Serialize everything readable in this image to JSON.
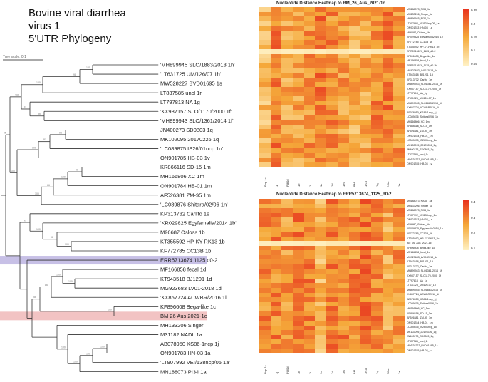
{
  "title": {
    "line1": "Bovine viral diarrhea",
    "line2": "virus 1",
    "line3": "5'UTR Phylogeny"
  },
  "tree": {
    "scale_label": "Tree scale: 0.1",
    "leaves": [
      "'MH899945 SLO/1883/2013 1h'",
      "'LT631725 UM/126/07 1h'",
      "MW528227 BVD01695 1s",
      "LT837585 uncl 1r",
      "LT797813 NA 1g",
      "'KX987157 SLO/1170/2000 1f'",
      "'MH899943 SLO/1361/2014 1f'",
      "JN400273 SD0803 1q",
      "MK102095 20170226 1q",
      "'LC089875 IS26/01ncp 1o'",
      "ON901785 HB-03 1v",
      "KR866116 SD-15 1m",
      "MH166806 XC 1m",
      "ON901784 HB-01 1m",
      "AF526381 ZM-95 1m",
      "'LC089876 Shitara/02/06 1n'",
      "KP313732 Carlito 1e",
      "'KR029825 Egyfamalia/2014 1b'",
      "M96687 Osloss 1b",
      "KT355592 HP-KY-RK13 1b",
      "KF772785 CC13B 1b",
      "ERR5713674 1125 d0-2",
      "MF166858 fecal 1d",
      "KT943518 BJ1201 1d",
      "MG923683 LV01-2018 1d",
      "'KX857724 ACWBR/2016 1i'",
      "KF896608 Bega-like 1c",
      "BM 26 Aus 2021-1c",
      "MH133206 Singer",
      "M31182 NADL 1a",
      "AB078950 KS86-1ncp 1j",
      "ON901783 HN-03 1a",
      "'LT907992 VEI/138ncp/05 1a'",
      "MN188073 PI34 1a"
    ],
    "bootstrap": [
      "100",
      "98",
      "100",
      "86",
      "87",
      "95",
      "81",
      "100",
      "99",
      "100",
      "66",
      "100",
      "100",
      "100",
      "95",
      "100",
      "98",
      "100",
      "97",
      "100",
      "100",
      "86",
      "100",
      "56",
      "100",
      "100",
      "100",
      "100"
    ],
    "highlight_colors": {
      "ERR": "#c7c0e6",
      "BM": "#f2c3c3"
    }
  },
  "heatmap_top": {
    "title": "Nucleotide Distance Heatmap to BM_26_Aus_2021-1c",
    "rows": [
      "MN188073_PI34_1a",
      "MH133206_Singer_1a",
      "MH899945_PI34_1a",
      "LT907992_VEI138ncp05_1a",
      "ON901783_HN-03_1a",
      "M96687_Osloss_1b",
      "KR029825_Egyfamalia2014_1b",
      "KF772785_CC13B_1b",
      "KT355592_HP-KY-RK13_1b",
      "ERR5713674_1125_d0-2",
      "KF896608_Bega-like_1c",
      "MF166858_fecal_1d",
      "ERR5713674_1125_d0-2b",
      "MG923683_LV01-2018_1d",
      "KT943518_BJ1201_1d",
      "KP313732_Carlito_1e",
      "MH899943_SLO1361-2014_1f",
      "KX987157_SLO1170-2000_1f",
      "LT797813_NA_1g",
      "LT631725_UM126-07_1h",
      "MH899945_SLO1883-2013_1h",
      "KX857724_ACWBR2016_1i",
      "AB078950_KS86-1ncp_1j",
      "LC089876_Shitara0206_1n",
      "MH166806_XC_1m",
      "KR866116_SD-15_1m",
      "AF526381_ZM-95_1m",
      "ON901784_HB-01_1m",
      "LC089875_IS2601ncp_1o",
      "MK102095_20170226_1q",
      "JN400273_SD0803_1q",
      "LT837585_uncl_1r",
      "MW528227_BVD01695_1s",
      "ON901785_HB-03_1v"
    ],
    "cols": [
      "Pop-1c",
      "1j",
      "PI80d",
      "1b",
      "1i",
      "1c",
      "1d",
      "1m",
      "BM",
      "1n-0",
      "1q",
      "N1a",
      "1a"
    ],
    "legend": [
      "0.25",
      "0.2",
      "0.15",
      "0.1",
      "0.05"
    ]
  },
  "heatmap_bottom": {
    "title": "Nucleotide Distance Heatmap to ERR5713674_1125_d0-2",
    "rows": [
      "MN188073_NADL_1a",
      "MH133206_Singer_1a",
      "MN188073_PI34_1a",
      "LT907992_VEI138ncp_1a",
      "ON901783_HN-03_1a",
      "M96687_Osloss_1b",
      "KR029825_Egyfamalia2014_1b",
      "KF772785_CC13B_1b",
      "KT355592_HP-KY-RK13_1b",
      "BM_26_Aus_2021-1c",
      "KF896608_Bega-like_1c",
      "MF166858_fecal_1d",
      "MG923683_LV01-2018_1d",
      "KT943518_BJ1201_1d",
      "KP313732_Carlito_1e",
      "MH899943_SLO1361-2014_1f",
      "KX987157_SLO1170-2000_1f",
      "LT797813_NA_1g",
      "LT631725_UM126-07_1h",
      "MH899945_SLO1883-2013_1h",
      "KX857724_ACWBR2016_1i",
      "AB078950_KS86-1ncp_1j",
      "LC089876_Shitara0206_1n",
      "MH166806_XC_1m",
      "KR866116_SD-15_1m",
      "AF526381_ZM-95_1m",
      "ON901784_HB-01_1m",
      "LC089875_IS2601ncp_1o",
      "MK102095_20170226_1q",
      "JN400273_SD0803_1q",
      "LT837585_uncl_1r",
      "MW528227_BVD01695_1s",
      "ON901785_HB-03_1v"
    ],
    "cols": [
      "Pop-1c",
      "1j",
      "PI80d",
      "1b",
      "1i",
      "1c",
      "1d",
      "1m",
      "BM",
      "1n-0",
      "1q",
      "N1a",
      "1a"
    ],
    "legend": [
      "0.4",
      "0.3",
      "0.2",
      "0.1"
    ]
  },
  "colors": {
    "hm_low": "#fff1c4",
    "hm_mid": "#f5a93a",
    "hm_high": "#e8321e"
  }
}
